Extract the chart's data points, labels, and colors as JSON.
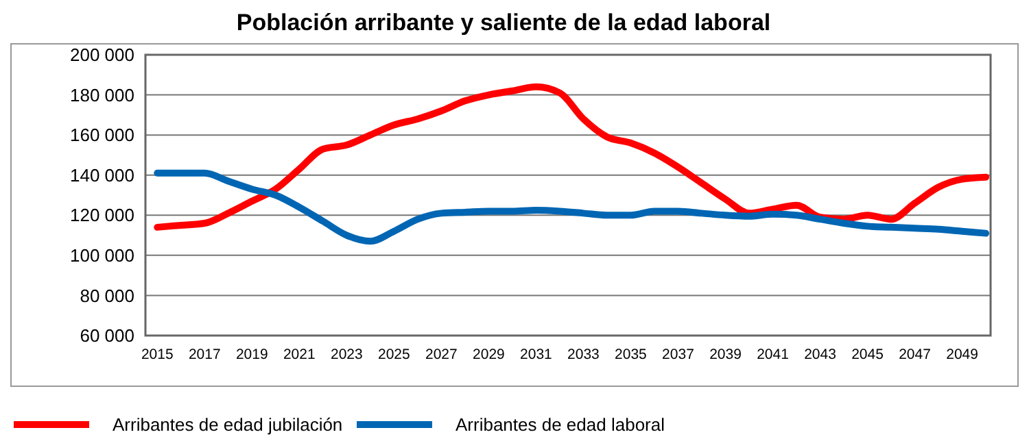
{
  "chart_data": {
    "type": "line",
    "title": "Población arribante y saliente de la edad laboral",
    "x": [
      2015,
      2016,
      2017,
      2018,
      2019,
      2020,
      2021,
      2022,
      2023,
      2024,
      2025,
      2026,
      2027,
      2028,
      2029,
      2030,
      2031,
      2032,
      2033,
      2034,
      2035,
      2036,
      2037,
      2038,
      2039,
      2040,
      2041,
      2042,
      2043,
      2044,
      2045,
      2046,
      2047,
      2048,
      2049,
      2050
    ],
    "series": [
      {
        "name": "Arribantes de edad jubilación",
        "color": "#ff0000",
        "values": [
          114000,
          115000,
          116000,
          121000,
          127000,
          133000,
          143000,
          153000,
          155000,
          160000,
          165000,
          168000,
          172000,
          177000,
          180000,
          182000,
          184000,
          181000,
          168000,
          159000,
          156000,
          151000,
          144000,
          136000,
          128000,
          121000,
          123000,
          125000,
          119000,
          118000,
          120000,
          118000,
          126000,
          134000,
          138000,
          139000
        ]
      },
      {
        "name": "Arribantes de edad laboral",
        "color": "#0066b3",
        "values": [
          141000,
          141000,
          141000,
          137000,
          133000,
          130000,
          124000,
          117000,
          110000,
          107000,
          112000,
          118000,
          121000,
          121500,
          122000,
          122000,
          122500,
          122000,
          121000,
          120000,
          120000,
          122000,
          122000,
          121000,
          120000,
          119500,
          120500,
          120000,
          118000,
          116000,
          114500,
          114000,
          113500,
          113000,
          112000,
          111000
        ]
      }
    ],
    "xlim": [
      2014.5,
      2050.2
    ],
    "xticks": [
      2015,
      2017,
      2019,
      2021,
      2023,
      2025,
      2027,
      2029,
      2031,
      2033,
      2035,
      2037,
      2039,
      2041,
      2043,
      2045,
      2047,
      2049
    ],
    "ylim": [
      60000,
      200000
    ],
    "yticks": [
      {
        "value": 60000,
        "label": "60 000"
      },
      {
        "value": 80000,
        "label": "80 000"
      },
      {
        "value": 100000,
        "label": "100 000"
      },
      {
        "value": 120000,
        "label": "120 000"
      },
      {
        "value": 140000,
        "label": "140 000"
      },
      {
        "value": 160000,
        "label": "160 000"
      },
      {
        "value": 180000,
        "label": "180 000"
      },
      {
        "value": 200000,
        "label": "200 000"
      }
    ],
    "grid": "y",
    "legend": "bottom",
    "marker": "none",
    "line_style": "solid"
  }
}
